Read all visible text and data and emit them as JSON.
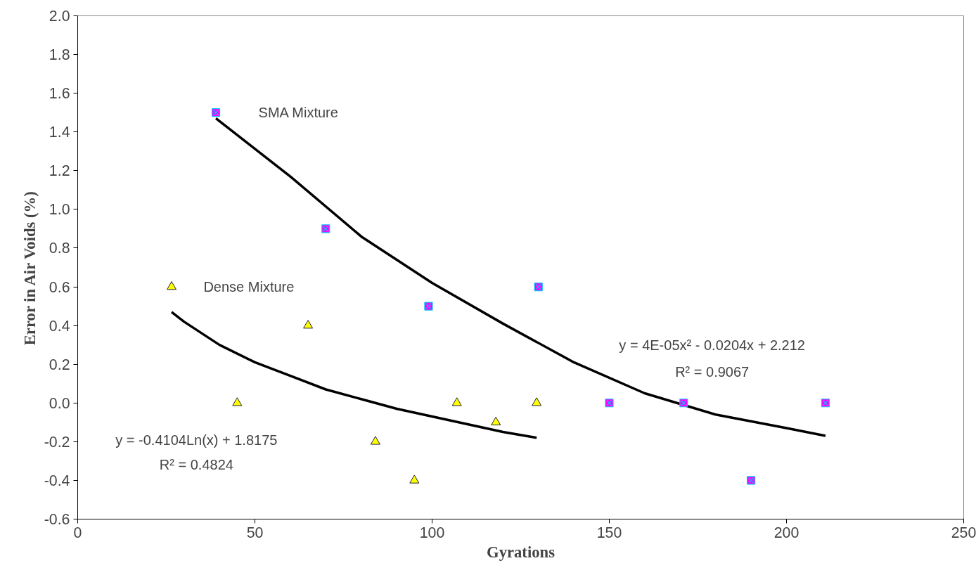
{
  "chart_data": {
    "type": "scatter",
    "xlabel": "Gyrations",
    "ylabel": "Error in Air Voids (%)",
    "xlim": [
      0,
      250
    ],
    "xticks": [
      0,
      50,
      100,
      150,
      200,
      250
    ],
    "ylim": [
      -0.6,
      2.0
    ],
    "yticks": [
      {
        "value": -0.6,
        "label": "-0.6"
      },
      {
        "value": -0.4,
        "label": "-0.4"
      },
      {
        "value": -0.2,
        "label": "-0.2"
      },
      {
        "value": 0,
        "label": "0.0"
      },
      {
        "value": 0.2,
        "label": "0.2"
      },
      {
        "value": 0.4,
        "label": "0.4"
      },
      {
        "value": 0.6,
        "label": "0.6"
      },
      {
        "value": 0.8,
        "label": "0.8"
      },
      {
        "value": 1.0,
        "label": "1.0"
      },
      {
        "value": 1.2,
        "label": "1.2"
      },
      {
        "value": 1.4,
        "label": "1.4"
      },
      {
        "value": 1.6,
        "label": "1.6"
      },
      {
        "value": 1.8,
        "label": "1.8"
      },
      {
        "value": 2.0,
        "label": "2.0"
      }
    ],
    "grid": false,
    "series": [
      {
        "marker": "square",
        "color": "#ff00ff",
        "x": [
          39,
          70,
          99,
          130,
          150,
          171,
          190,
          211
        ],
        "values": [
          1.5,
          0.9,
          0.5,
          0.6,
          0,
          0,
          -0.4,
          0
        ]
      },
      {
        "marker": "triangle",
        "color": "#ffff00",
        "x": [
          26.5,
          45,
          65,
          84,
          95,
          107,
          118,
          129.5
        ],
        "values": [
          0.6,
          0,
          0.4,
          -0.2,
          -0.4,
          0,
          -0.1,
          0
        ]
      },
      {
        "type": "line",
        "color": "#000000",
        "x": [
          39,
          60,
          80,
          100,
          120,
          140,
          160,
          180,
          200,
          211
        ],
        "values": [
          1.47,
          1.17,
          0.86,
          0.62,
          0.41,
          0.21,
          0.05,
          -0.06,
          -0.13,
          -0.17
        ]
      },
      {
        "type": "line",
        "color": "#000000",
        "x": [
          26.5,
          30,
          40,
          50,
          60,
          70,
          80,
          90,
          100,
          110,
          120,
          129.5
        ],
        "values": [
          0.47,
          0.42,
          0.3,
          0.21,
          0.14,
          0.07,
          0.02,
          -0.03,
          -0.07,
          -0.11,
          -0.15,
          -0.18
        ]
      }
    ],
    "annotations": [
      "SMA Mixture",
      "Dense Mixture",
      "y = 4E-05x² - 0.0204x + 2.212",
      "R² = 0.9067",
      "y = -0.4104Ln(x) + 1.8175",
      "R² = 0.4824"
    ]
  }
}
